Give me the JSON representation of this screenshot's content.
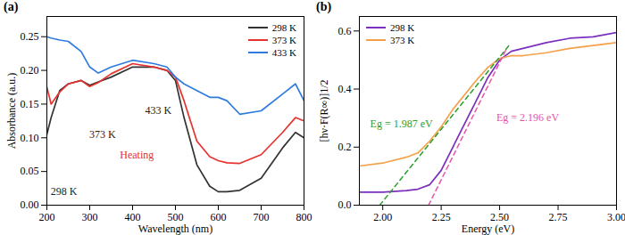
{
  "chart_data": [
    {
      "type": "line",
      "title": "(a)",
      "xlabel": "Wavelength (nm)",
      "ylabel": "Absorbance (a.u.)",
      "x": [
        200,
        210,
        230,
        250,
        280,
        300,
        320,
        350,
        400,
        450,
        480,
        500,
        520,
        550,
        580,
        600,
        620,
        650,
        700,
        750,
        780,
        800
      ],
      "xlim": [
        200,
        800
      ],
      "xticks": [
        200,
        300,
        400,
        500,
        600,
        700,
        800
      ],
      "ylim": [
        0,
        0.28
      ],
      "yticks": [
        {
          "value": 0,
          "label": "0.00"
        },
        {
          "value": 0.05,
          "label": "0.05"
        },
        {
          "value": 0.1,
          "label": "0.10"
        },
        {
          "value": 0.15,
          "label": "0.15"
        },
        {
          "value": 0.2,
          "label": "0.20"
        },
        {
          "value": 0.25,
          "label": "0.25"
        }
      ],
      "grid": false,
      "legend": "upper right",
      "series": [
        {
          "name": "298 K",
          "color": "#333333",
          "line_style": "solid",
          "values": [
            0.105,
            0.13,
            0.17,
            0.18,
            0.185,
            0.178,
            0.183,
            0.19,
            0.205,
            0.205,
            0.2,
            0.185,
            0.13,
            0.06,
            0.028,
            0.02,
            0.02,
            0.022,
            0.04,
            0.085,
            0.108,
            0.1
          ]
        },
        {
          "name": "373 K",
          "color": "#e8322f",
          "line_style": "solid",
          "values": [
            0.175,
            0.15,
            0.168,
            0.18,
            0.185,
            0.176,
            0.182,
            0.195,
            0.21,
            0.205,
            0.2,
            0.19,
            0.155,
            0.095,
            0.072,
            0.066,
            0.063,
            0.062,
            0.075,
            0.108,
            0.13,
            0.125
          ]
        },
        {
          "name": "433 K",
          "color": "#2f7be0",
          "line_style": "solid",
          "values": [
            0.25,
            0.248,
            0.245,
            0.243,
            0.228,
            0.205,
            0.196,
            0.205,
            0.215,
            0.21,
            0.205,
            0.19,
            0.18,
            0.17,
            0.16,
            0.16,
            0.155,
            0.135,
            0.14,
            0.165,
            0.18,
            0.155
          ]
        }
      ],
      "annotations": [
        {
          "text": "298 K",
          "x": 240,
          "y": 0.02
        },
        {
          "text": "373 K",
          "x": 330,
          "y": 0.105
        },
        {
          "text": "433 K",
          "x": 460,
          "y": 0.14
        },
        {
          "text": "Heating",
          "x": 410,
          "y": 0.075,
          "color": "#e0303a"
        }
      ]
    },
    {
      "type": "line",
      "title": "(b)",
      "xlabel": "Energy (eV)",
      "ylabel": "[hν·F(R∞)]1/2",
      "x": [
        1.9,
        2.0,
        2.1,
        2.15,
        2.2,
        2.25,
        2.3,
        2.35,
        2.4,
        2.45,
        2.5,
        2.55,
        2.6,
        2.7,
        2.8,
        2.9,
        3.0
      ],
      "xlim": [
        1.9,
        3.0
      ],
      "xticks": [
        {
          "value": 2,
          "label": "2.00"
        },
        2.25,
        {
          "value": 2.5,
          "label": "2.50"
        },
        2.75,
        {
          "value": 3,
          "label": "3.00"
        }
      ],
      "ylim": [
        0,
        0.65
      ],
      "yticks": [
        {
          "value": 0,
          "label": "0.0"
        },
        0.2,
        0.4,
        0.6
      ],
      "grid": false,
      "legend": "upper left",
      "series": [
        {
          "name": "298 K",
          "color": "#7b2fbe",
          "line_style": "solid",
          "values": [
            0.045,
            0.045,
            0.05,
            0.055,
            0.07,
            0.12,
            0.2,
            0.28,
            0.36,
            0.44,
            0.5,
            0.53,
            0.54,
            0.56,
            0.575,
            0.58,
            0.595
          ]
        },
        {
          "name": "373 K",
          "color": "#f5a04a",
          "line_style": "solid",
          "values": [
            0.135,
            0.145,
            0.165,
            0.18,
            0.22,
            0.27,
            0.33,
            0.38,
            0.43,
            0.475,
            0.505,
            0.515,
            0.515,
            0.525,
            0.54,
            0.55,
            0.56
          ]
        }
      ],
      "fits": [
        {
          "color": "#2ca02c",
          "line_style": "dashed",
          "x": [
            1.987,
            2.54
          ],
          "values": [
            0,
            0.55
          ]
        },
        {
          "color": "#e754a6",
          "line_style": "dashed",
          "x": [
            2.196,
            2.53
          ],
          "values": [
            0,
            0.54
          ]
        }
      ],
      "annotations": [
        {
          "text": "Eg = 1.987 eV",
          "x": 2.08,
          "y": 0.28,
          "color": "#2ca02c"
        },
        {
          "text": "Eg = 2.196 eV",
          "x": 2.62,
          "y": 0.3,
          "color": "#e754a6"
        }
      ]
    }
  ]
}
